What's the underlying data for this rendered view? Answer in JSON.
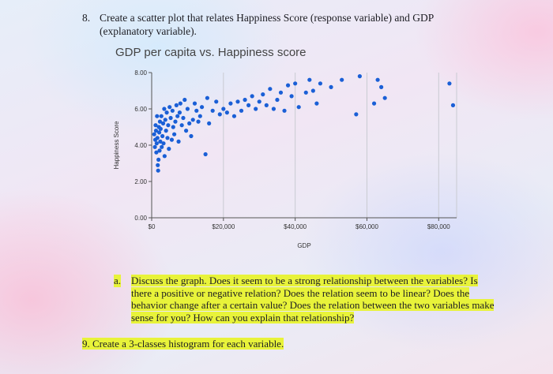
{
  "question8": {
    "number": "8.",
    "text": "Create a scatter plot that relates Happiness Score (response variable) and GDP (explanatory variable)."
  },
  "chart_data": {
    "type": "scatter",
    "title": "GDP per capita vs. Happiness score",
    "xlabel": "GDP",
    "ylabel": "Happiness Score",
    "xlim": [
      0,
      85000
    ],
    "ylim": [
      0,
      8
    ],
    "x_ticks": [
      0,
      20000,
      40000,
      60000,
      80000
    ],
    "x_tick_labels": [
      "$0",
      "$20,000",
      "$40,000",
      "$60,000",
      "$80,000"
    ],
    "y_ticks": [
      0,
      2,
      4,
      6,
      8
    ],
    "y_tick_labels": [
      "0.00",
      "2.00",
      "4.00",
      "6.00",
      "8.00"
    ],
    "grid": "vertical",
    "point_color": "#1a5fd6",
    "points": [
      [
        700,
        4.6
      ],
      [
        900,
        3.9
      ],
      [
        1000,
        4.3
      ],
      [
        1100,
        5.1
      ],
      [
        1200,
        4.8
      ],
      [
        1300,
        3.6
      ],
      [
        1400,
        4.1
      ],
      [
        1500,
        5.6
      ],
      [
        1600,
        4.4
      ],
      [
        1700,
        2.9
      ],
      [
        1800,
        2.6
      ],
      [
        1900,
        3.2
      ],
      [
        2000,
        5.0
      ],
      [
        2100,
        4.7
      ],
      [
        2200,
        3.7
      ],
      [
        2300,
        5.3
      ],
      [
        2400,
        4.2
      ],
      [
        2500,
        4.9
      ],
      [
        2700,
        5.6
      ],
      [
        2800,
        3.9
      ],
      [
        3000,
        4.5
      ],
      [
        3200,
        5.2
      ],
      [
        3300,
        4.1
      ],
      [
        3500,
        6.0
      ],
      [
        3600,
        3.4
      ],
      [
        3800,
        5.4
      ],
      [
        4000,
        4.8
      ],
      [
        4200,
        5.8
      ],
      [
        4400,
        4.4
      ],
      [
        4600,
        5.1
      ],
      [
        4800,
        3.8
      ],
      [
        5000,
        6.1
      ],
      [
        5300,
        5.5
      ],
      [
        5600,
        4.3
      ],
      [
        5800,
        5.9
      ],
      [
        6000,
        5.0
      ],
      [
        6300,
        4.6
      ],
      [
        6600,
        5.3
      ],
      [
        6900,
        6.2
      ],
      [
        7200,
        5.6
      ],
      [
        7500,
        4.2
      ],
      [
        7800,
        5.8
      ],
      [
        8000,
        6.3
      ],
      [
        8400,
        5.1
      ],
      [
        8800,
        5.5
      ],
      [
        9200,
        6.5
      ],
      [
        9600,
        4.8
      ],
      [
        10000,
        6.0
      ],
      [
        10500,
        5.2
      ],
      [
        11000,
        4.5
      ],
      [
        11500,
        5.4
      ],
      [
        12000,
        6.3
      ],
      [
        12500,
        5.9
      ],
      [
        13000,
        5.3
      ],
      [
        13500,
        5.6
      ],
      [
        14000,
        6.1
      ],
      [
        15000,
        3.5
      ],
      [
        15500,
        6.6
      ],
      [
        16000,
        5.2
      ],
      [
        17000,
        5.9
      ],
      [
        18000,
        6.4
      ],
      [
        19000,
        5.7
      ],
      [
        20000,
        6.0
      ],
      [
        21000,
        5.8
      ],
      [
        22000,
        6.3
      ],
      [
        23000,
        5.6
      ],
      [
        24000,
        6.4
      ],
      [
        25000,
        5.9
      ],
      [
        26000,
        6.5
      ],
      [
        27000,
        6.2
      ],
      [
        28000,
        6.7
      ],
      [
        29000,
        6.0
      ],
      [
        30000,
        6.4
      ],
      [
        31000,
        6.8
      ],
      [
        32000,
        6.2
      ],
      [
        33000,
        7.1
      ],
      [
        34000,
        6.0
      ],
      [
        35000,
        6.5
      ],
      [
        36000,
        6.9
      ],
      [
        37000,
        5.9
      ],
      [
        38000,
        7.3
      ],
      [
        39000,
        6.7
      ],
      [
        40000,
        7.4
      ],
      [
        41000,
        6.1
      ],
      [
        43000,
        6.9
      ],
      [
        44000,
        7.6
      ],
      [
        45000,
        7.0
      ],
      [
        46000,
        6.3
      ],
      [
        47000,
        7.4
      ],
      [
        50000,
        7.2
      ],
      [
        53000,
        7.6
      ],
      [
        57000,
        5.7
      ],
      [
        58000,
        7.8
      ],
      [
        62000,
        6.3
      ],
      [
        63000,
        7.6
      ],
      [
        64000,
        7.2
      ],
      [
        65000,
        6.6
      ],
      [
        83000,
        7.4
      ],
      [
        84000,
        6.2
      ]
    ]
  },
  "question_a": {
    "label": "a.",
    "text": "Discuss the graph. Does it seem to be a strong relationship between the variables? Is there a positive or negative relation? Does the relation seem to be linear? Does the behavior change after a certain value? Does the relation between the two variables make sense for you? How can you explain that relationship?"
  },
  "question9": {
    "number": "9.",
    "text": "Create a 3-classes histogram for each variable."
  }
}
